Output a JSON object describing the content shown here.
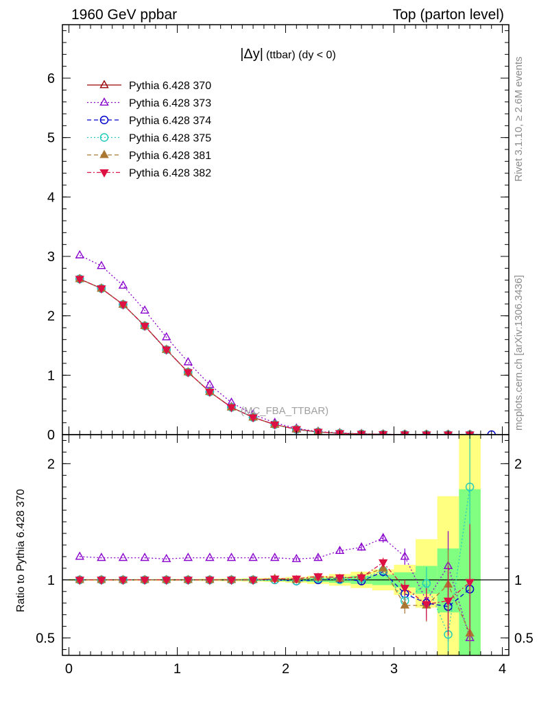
{
  "header": {
    "left": "1960 GeV ppbar",
    "right": "Top (parton level)"
  },
  "side_labels": {
    "rivet": "Rivet 3.1.10, ≥ 2.6M events",
    "mcplots": "mcplots.cern.ch [arXiv:1306.3436]"
  },
  "watermark": "(MC_FBA_TTBAR)",
  "colors": {
    "band_yellow": "#ffff80",
    "band_green": "#80ff80"
  },
  "chart_data": [
    {
      "type": "line",
      "title_main": "|Δy|",
      "title_sub": "(ttbar) (dy < 0)",
      "xlim": [
        -0.06,
        4.06
      ],
      "ylim": [
        0,
        6.9
      ],
      "yticks": [
        {
          "value": 0,
          "label": "0"
        },
        {
          "value": 1,
          "label": "1"
        },
        {
          "value": 2,
          "label": "2"
        },
        {
          "value": 3,
          "label": "3"
        },
        {
          "value": 4,
          "label": "4"
        },
        {
          "value": 5,
          "label": "5"
        },
        {
          "value": 6,
          "label": "6"
        }
      ],
      "legend_position": "top-left",
      "x": [
        0.1,
        0.3,
        0.5,
        0.7,
        0.9,
        1.1,
        1.3,
        1.5,
        1.7,
        1.9,
        2.1,
        2.3,
        2.5,
        2.7,
        2.9,
        3.1,
        3.3,
        3.5,
        3.7,
        3.9
      ],
      "series": [
        {
          "name": "Pythia 6.428 370",
          "color": "#990000",
          "dash": "",
          "marker": "triangle-open",
          "values": [
            2.62,
            2.46,
            2.19,
            1.83,
            1.43,
            1.05,
            0.72,
            0.46,
            0.29,
            0.17,
            0.09,
            0.045,
            0.022,
            0.011,
            0.005,
            0.0025,
            0.0012,
            0.0006,
            0.0003,
            null
          ]
        },
        {
          "name": "Pythia 6.428 373",
          "color": "#8800cc",
          "dash": "2,3",
          "marker": "triangle-open",
          "values": [
            3.02,
            2.84,
            2.51,
            2.09,
            1.64,
            1.22,
            0.84,
            0.54,
            0.34,
            0.2,
            0.105,
            0.052,
            0.028,
            0.014,
            0.007,
            0.003,
            0.0014,
            0.0007,
            0.0003,
            null
          ]
        },
        {
          "name": "Pythia 6.428 374",
          "color": "#0000cc",
          "dash": "6,4",
          "marker": "circle-open",
          "values": [
            2.62,
            2.46,
            2.19,
            1.83,
            1.43,
            1.05,
            0.72,
            0.46,
            0.29,
            0.17,
            0.088,
            0.045,
            0.022,
            0.011,
            0.005,
            0.0022,
            0.001,
            0.0005,
            0.0003,
            0.0001
          ]
        },
        {
          "name": "Pythia 6.428 375",
          "color": "#22ccbb",
          "dash": "2,3",
          "marker": "circle-open",
          "values": [
            2.62,
            2.46,
            2.19,
            1.83,
            1.43,
            1.05,
            0.72,
            0.46,
            0.29,
            0.17,
            0.088,
            0.045,
            0.022,
            0.011,
            0.005,
            0.002,
            0.0011,
            0.0003,
            0.0005,
            null
          ]
        },
        {
          "name": "Pythia 6.428 381",
          "color": "#aa7733",
          "dash": "6,4",
          "marker": "triangle-filled",
          "values": [
            2.62,
            2.46,
            2.19,
            1.83,
            1.43,
            1.05,
            0.72,
            0.46,
            0.29,
            0.17,
            0.09,
            0.046,
            0.022,
            0.011,
            0.005,
            0.002,
            0.001,
            0.0006,
            0.0002,
            null
          ]
        },
        {
          "name": "Pythia 6.428 382",
          "color": "#dd1144",
          "dash": "6,3,2,3",
          "marker": "triangle-down-filled",
          "values": [
            2.62,
            2.46,
            2.19,
            1.83,
            1.43,
            1.05,
            0.72,
            0.46,
            0.29,
            0.17,
            0.09,
            0.046,
            0.022,
            0.011,
            0.006,
            0.0023,
            0.001,
            0.0005,
            0.0003,
            null
          ]
        }
      ]
    },
    {
      "type": "line",
      "ylabel": "Ratio to Pythia 6.428 370",
      "xlim": [
        -0.06,
        4.06
      ],
      "ylim": [
        0.35,
        2.25
      ],
      "reference_line": 1,
      "xticks": [
        {
          "value": 0,
          "label": "0"
        },
        {
          "value": 1,
          "label": "1"
        },
        {
          "value": 2,
          "label": "2"
        },
        {
          "value": 3,
          "label": "3"
        },
        {
          "value": 4,
          "label": "4"
        }
      ],
      "yticks": [
        {
          "value": 0.5,
          "label": "0.5"
        },
        {
          "value": 1,
          "label": "1"
        },
        {
          "value": 2,
          "label": "2"
        }
      ],
      "bins": [
        [
          0.0,
          0.2
        ],
        [
          0.2,
          0.4
        ],
        [
          0.4,
          0.6
        ],
        [
          0.6,
          0.8
        ],
        [
          0.8,
          1.0
        ],
        [
          1.0,
          1.2
        ],
        [
          1.2,
          1.4
        ],
        [
          1.4,
          1.6
        ],
        [
          1.6,
          1.8
        ],
        [
          1.8,
          2.0
        ],
        [
          2.0,
          2.2
        ],
        [
          2.2,
          2.4
        ],
        [
          2.4,
          2.6
        ],
        [
          2.6,
          2.8
        ],
        [
          2.8,
          3.0
        ],
        [
          3.0,
          3.2
        ],
        [
          3.2,
          3.4
        ],
        [
          3.4,
          3.6
        ],
        [
          3.6,
          3.8
        ]
      ],
      "band_yellow": [
        [
          0.993,
          1.007
        ],
        [
          0.993,
          1.007
        ],
        [
          0.993,
          1.007
        ],
        [
          0.993,
          1.007
        ],
        [
          0.992,
          1.008
        ],
        [
          0.992,
          1.008
        ],
        [
          0.99,
          1.01
        ],
        [
          0.988,
          1.012
        ],
        [
          0.985,
          1.015
        ],
        [
          0.982,
          1.018
        ],
        [
          0.975,
          1.025
        ],
        [
          0.965,
          1.035
        ],
        [
          0.95,
          1.05
        ],
        [
          0.93,
          1.07
        ],
        [
          0.91,
          1.09
        ],
        [
          0.87,
          1.13
        ],
        [
          0.76,
          1.35
        ],
        [
          0.35,
          1.72
        ],
        [
          0.35,
          2.25
        ]
      ],
      "band_green": [
        [
          0.996,
          1.004
        ],
        [
          0.996,
          1.004
        ],
        [
          0.996,
          1.004
        ],
        [
          0.996,
          1.004
        ],
        [
          0.996,
          1.004
        ],
        [
          0.995,
          1.005
        ],
        [
          0.995,
          1.005
        ],
        [
          0.994,
          1.006
        ],
        [
          0.992,
          1.008
        ],
        [
          0.99,
          1.01
        ],
        [
          0.987,
          1.013
        ],
        [
          0.982,
          1.018
        ],
        [
          0.975,
          1.025
        ],
        [
          0.965,
          1.035
        ],
        [
          0.955,
          1.045
        ],
        [
          0.935,
          1.065
        ],
        [
          0.88,
          1.12
        ],
        [
          0.72,
          1.27
        ],
        [
          0.35,
          1.78
        ]
      ],
      "x": [
        0.1,
        0.3,
        0.5,
        0.7,
        0.9,
        1.1,
        1.3,
        1.5,
        1.7,
        1.9,
        2.1,
        2.3,
        2.5,
        2.7,
        2.9,
        3.1,
        3.3,
        3.5,
        3.7
      ],
      "series": [
        {
          "name": "Pythia 6.428 373",
          "color": "#8800cc",
          "dash": "2,3",
          "marker": "triangle-open",
          "values": [
            1.2,
            1.19,
            1.19,
            1.19,
            1.18,
            1.19,
            1.19,
            1.19,
            1.19,
            1.19,
            1.18,
            1.19,
            1.25,
            1.28,
            1.36,
            1.2,
            0.82,
            1.12,
            0.5
          ],
          "err": [
            0.004,
            0.004,
            0.004,
            0.004,
            0.005,
            0.005,
            0.006,
            0.007,
            0.009,
            0.011,
            0.015,
            0.02,
            0.025,
            0.03,
            0.04,
            0.07,
            0.14,
            0.3,
            0.5
          ]
        },
        {
          "name": "Pythia 6.428 374",
          "color": "#0000cc",
          "dash": "6,4",
          "marker": "circle-open",
          "values": [
            1.0,
            1.0,
            1.0,
            1.0,
            1.0,
            1.0,
            1.0,
            1.0,
            1.0,
            1.0,
            0.99,
            1.0,
            1.01,
            0.99,
            1.07,
            0.88,
            0.8,
            0.77,
            0.92
          ],
          "err": [
            0.004,
            0.004,
            0.004,
            0.004,
            0.005,
            0.005,
            0.006,
            0.007,
            0.009,
            0.011,
            0.015,
            0.02,
            0.025,
            0.03,
            0.04,
            0.07,
            0.14,
            0.3,
            0.5
          ]
        },
        {
          "name": "Pythia 6.428 375",
          "color": "#22ccbb",
          "dash": "2,3",
          "marker": "circle-open",
          "values": [
            1.0,
            1.0,
            1.0,
            1.0,
            1.0,
            1.0,
            1.0,
            1.0,
            1.0,
            1.0,
            0.99,
            1.01,
            1.0,
            1.01,
            1.08,
            0.82,
            0.97,
            0.53,
            1.8
          ],
          "err": [
            0.004,
            0.004,
            0.004,
            0.004,
            0.005,
            0.005,
            0.006,
            0.007,
            0.009,
            0.011,
            0.015,
            0.02,
            0.025,
            0.03,
            0.04,
            0.07,
            0.14,
            0.3,
            0.5
          ]
        },
        {
          "name": "Pythia 6.428 381",
          "color": "#aa7733",
          "dash": "6,4",
          "marker": "triangle-filled",
          "values": [
            1.0,
            1.0,
            1.0,
            1.0,
            1.0,
            1.0,
            1.0,
            1.0,
            1.0,
            1.01,
            1.0,
            1.02,
            1.01,
            1.03,
            1.1,
            0.78,
            0.78,
            0.96,
            0.54
          ],
          "err": [
            0.004,
            0.004,
            0.004,
            0.004,
            0.005,
            0.005,
            0.006,
            0.007,
            0.009,
            0.011,
            0.015,
            0.02,
            0.025,
            0.03,
            0.04,
            0.07,
            0.14,
            0.3,
            0.5
          ]
        },
        {
          "name": "Pythia 6.428 382",
          "color": "#dd1144",
          "dash": "6,3,2,3",
          "marker": "triangle-down-filled",
          "values": [
            1.0,
            1.0,
            1.0,
            1.0,
            1.0,
            1.0,
            1.0,
            1.0,
            1.0,
            1.01,
            1.01,
            1.03,
            1.02,
            1.02,
            1.15,
            0.93,
            0.79,
            0.82,
            0.98
          ],
          "err": [
            0.004,
            0.004,
            0.004,
            0.004,
            0.005,
            0.005,
            0.006,
            0.007,
            0.009,
            0.011,
            0.015,
            0.02,
            0.025,
            0.03,
            0.04,
            0.07,
            0.14,
            0.3,
            0.5
          ]
        }
      ]
    }
  ]
}
